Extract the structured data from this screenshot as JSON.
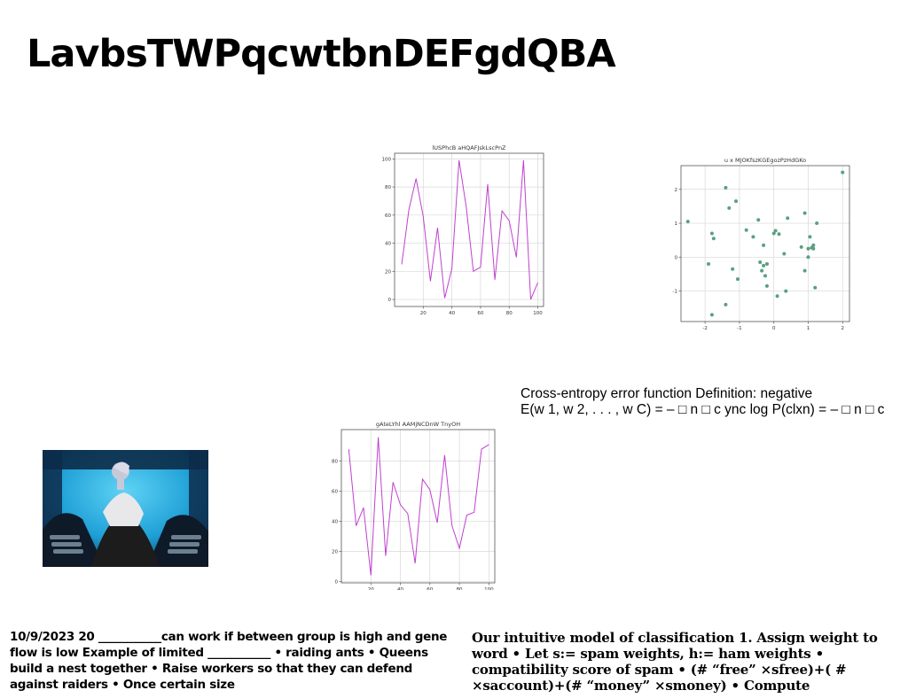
{
  "slide": {
    "title": "LavbsTWPqcwtbnDEFgdQBA",
    "cross_entropy": {
      "line1": "Cross-entropy error function Definition: negative",
      "line2": "E(w 1, w 2, . . . , w C) = – □ n □ c ync log P(clxn) = – □ n □ c"
    },
    "footer_left": "10/9/2023 20 ___________can work if between group is high and gene flow is low Example of limited ___________ • raiding ants • Queens build a nest together • Raise workers so that they can defend against raiders • Once certain size",
    "footer_right": "Our intuitive model of classification 1. Assign weight to word • Let s:= spam weights, h:= ham weights • compatibility score of spam • (# “free” ×sfree)+( # ×saccount)+(# “money” ×smoney) • Compute",
    "photo_icon": "photo-of-person-sitting"
  },
  "chart_data": [
    {
      "type": "line",
      "title": "lUSPhcB aHQAFJskLscPnZ",
      "color": "#c040d0",
      "x": [
        5,
        10,
        15,
        20,
        25,
        30,
        35,
        40,
        45,
        50,
        55,
        60,
        65,
        70,
        75,
        80,
        85,
        90,
        95,
        100
      ],
      "y": [
        25,
        64,
        86,
        59,
        13,
        51,
        1,
        22,
        99,
        66,
        20,
        23,
        82,
        14,
        63,
        56,
        30,
        99,
        0,
        12
      ],
      "xticks": [
        20,
        40,
        60,
        80,
        100
      ],
      "yticks": [
        0,
        20,
        40,
        60,
        80,
        100
      ],
      "xlim": [
        0,
        104
      ],
      "ylim": [
        -5,
        104
      ],
      "grid": true
    },
    {
      "type": "scatter",
      "title": "u x MJOKfszKGEgozPzHdGKo",
      "color": "#5aa080",
      "x": [
        -2.5,
        -1.9,
        -1.8,
        -1.75,
        -1.8,
        -1.4,
        -1.3,
        -1.2,
        -1.1,
        -1.05,
        -1.4,
        -0.8,
        -0.6,
        -0.45,
        -0.4,
        -0.35,
        -0.3,
        -0.25,
        -0.2,
        -0.2,
        -0.3,
        0.0,
        0.05,
        0.1,
        0.15,
        0.3,
        0.4,
        0.35,
        0.8,
        0.9,
        1.0,
        1.0,
        1.05,
        1.1,
        1.15,
        1.15,
        1.2,
        1.25,
        2.0,
        0.9
      ],
      "y": [
        1.05,
        -0.2,
        0.7,
        0.55,
        -1.7,
        2.05,
        1.45,
        -0.35,
        1.65,
        -0.65,
        -1.4,
        0.8,
        0.6,
        1.1,
        -0.15,
        -0.4,
        -0.25,
        -0.55,
        -0.2,
        -0.85,
        0.35,
        0.7,
        0.78,
        -1.15,
        0.68,
        0.1,
        1.15,
        -1.0,
        0.3,
        1.3,
        0.0,
        0.25,
        0.6,
        0.28,
        0.25,
        0.35,
        -0.9,
        1.0,
        2.5,
        -0.4
      ],
      "xticks": [
        -2,
        -1,
        0,
        1,
        2
      ],
      "yticks": [
        -1,
        0,
        1,
        2
      ],
      "xlim": [
        -2.7,
        2.2
      ],
      "ylim": [
        -1.9,
        2.7
      ],
      "grid": true
    },
    {
      "type": "line",
      "title": "gAteLYhl AAMjNCDnW TnyOH",
      "color": "#c040d0",
      "x": [
        5,
        10,
        15,
        20,
        25,
        30,
        35,
        40,
        45,
        50,
        55,
        60,
        65,
        70,
        75,
        80,
        85,
        90,
        95,
        100
      ],
      "y": [
        88,
        37,
        49,
        4,
        96,
        17,
        66,
        51,
        45,
        12,
        68,
        61,
        39,
        84,
        37,
        22,
        44,
        46,
        88,
        91
      ],
      "xticks": [
        20,
        40,
        60,
        80,
        100
      ],
      "yticks": [
        0,
        20,
        40,
        60,
        80
      ],
      "xlim": [
        0,
        104
      ],
      "ylim": [
        -1,
        101
      ],
      "grid": true
    }
  ]
}
